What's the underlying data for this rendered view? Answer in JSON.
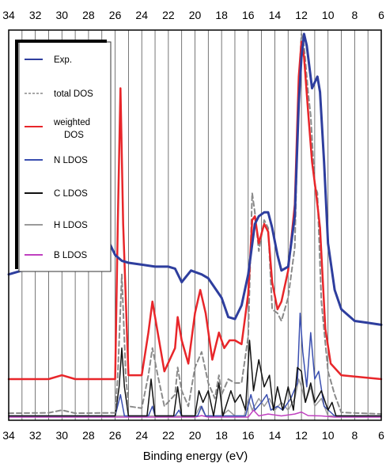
{
  "chart_data": {
    "type": "line",
    "title": "",
    "xlabel": "Binding energy (eV)",
    "ylabel": "",
    "xlim": [
      34,
      6
    ],
    "x_reversed": true,
    "grid": true,
    "legend_position": "top-left",
    "xticks": [
      34,
      32,
      30,
      28,
      26,
      24,
      22,
      20,
      18,
      16,
      14,
      12,
      10,
      8,
      6
    ],
    "legend": [
      {
        "label": "Exp.",
        "style": "solid",
        "color": "#2e3e9e"
      },
      {
        "label": "total DOS",
        "style": "dashed",
        "color": "#8a8a8a"
      },
      {
        "label": "weighted\nDOS",
        "style": "solid",
        "color": "#e8262a"
      },
      {
        "label": "N LDOS",
        "style": "solid",
        "color": "#3a4fb0"
      },
      {
        "label": "C LDOS",
        "style": "solid",
        "color": "#111111"
      },
      {
        "label": "H LDOS",
        "style": "solid",
        "color": "#9a9a9a"
      },
      {
        "label": "B LDOS",
        "style": "solid",
        "color": "#c040c0"
      }
    ],
    "series": [
      {
        "name": "Exp.",
        "color": "#2e3e9e",
        "width": 3,
        "points": [
          [
            34,
            0.37
          ],
          [
            32,
            0.39
          ],
          [
            30.5,
            0.43
          ],
          [
            29.5,
            0.48
          ],
          [
            28.5,
            0.535
          ],
          [
            28,
            0.54
          ],
          [
            27.5,
            0.52
          ],
          [
            26.7,
            0.47
          ],
          [
            26,
            0.42
          ],
          [
            25.5,
            0.405
          ],
          [
            25,
            0.4
          ],
          [
            24,
            0.395
          ],
          [
            23,
            0.39
          ],
          [
            22,
            0.39
          ],
          [
            21.5,
            0.385
          ],
          [
            21,
            0.35
          ],
          [
            20.3,
            0.38
          ],
          [
            19.5,
            0.37
          ],
          [
            19,
            0.36
          ],
          [
            18,
            0.31
          ],
          [
            17.5,
            0.26
          ],
          [
            17,
            0.255
          ],
          [
            16.5,
            0.29
          ],
          [
            16,
            0.37
          ],
          [
            15.5,
            0.5
          ],
          [
            15.2,
            0.52
          ],
          [
            14.8,
            0.53
          ],
          [
            14.5,
            0.53
          ],
          [
            14.2,
            0.49
          ],
          [
            13.8,
            0.42
          ],
          [
            13.5,
            0.38
          ],
          [
            13,
            0.39
          ],
          [
            12.5,
            0.52
          ],
          [
            12.2,
            0.81
          ],
          [
            12,
            0.93
          ],
          [
            11.8,
            0.99
          ],
          [
            11.6,
            0.96
          ],
          [
            11.2,
            0.85
          ],
          [
            10.8,
            0.88
          ],
          [
            10.6,
            0.84
          ],
          [
            10.3,
            0.66
          ],
          [
            10,
            0.45
          ],
          [
            9.5,
            0.33
          ],
          [
            9,
            0.28
          ],
          [
            8,
            0.25
          ],
          [
            7,
            0.245
          ],
          [
            6,
            0.24
          ]
        ]
      },
      {
        "name": "total DOS",
        "color": "#8a8a8a",
        "width": 2,
        "dash": "6 4",
        "points": [
          [
            34,
            0.012
          ],
          [
            31,
            0.013
          ],
          [
            30,
            0.02
          ],
          [
            29,
            0.012
          ],
          [
            26,
            0.013
          ],
          [
            25.8,
            0.11
          ],
          [
            25.5,
            0.37
          ],
          [
            25.2,
            0.11
          ],
          [
            25,
            0.03
          ],
          [
            24,
            0.025
          ],
          [
            23.5,
            0.11
          ],
          [
            23.2,
            0.18
          ],
          [
            22.8,
            0.11
          ],
          [
            22.3,
            0.03
          ],
          [
            21.5,
            0.06
          ],
          [
            21.3,
            0.13
          ],
          [
            21,
            0.07
          ],
          [
            20.5,
            0.03
          ],
          [
            20,
            0.13
          ],
          [
            19.5,
            0.17
          ],
          [
            19,
            0.09
          ],
          [
            18.5,
            0.05
          ],
          [
            18.2,
            0.11
          ],
          [
            18,
            0.06
          ],
          [
            17.5,
            0.1
          ],
          [
            17,
            0.09
          ],
          [
            16.5,
            0.09
          ],
          [
            16,
            0.21
          ],
          [
            15.7,
            0.58
          ],
          [
            15.5,
            0.53
          ],
          [
            15.2,
            0.43
          ],
          [
            14.8,
            0.51
          ],
          [
            14.5,
            0.49
          ],
          [
            14.2,
            0.28
          ],
          [
            13.8,
            0.27
          ],
          [
            13.5,
            0.25
          ],
          [
            13,
            0.31
          ],
          [
            12.5,
            0.44
          ],
          [
            12.2,
            0.86
          ],
          [
            12,
            0.99
          ],
          [
            11.8,
            0.96
          ],
          [
            11.5,
            0.84
          ],
          [
            11.3,
            0.78
          ],
          [
            11,
            0.6
          ],
          [
            10.8,
            0.58
          ],
          [
            10.5,
            0.3
          ],
          [
            10,
            0.12
          ],
          [
            9.5,
            0.06
          ],
          [
            9,
            0.014
          ],
          [
            6,
            0.01
          ]
        ]
      },
      {
        "name": "weighted DOS",
        "color": "#e8262a",
        "width": 2.5,
        "points": [
          [
            34,
            0.1
          ],
          [
            31,
            0.1
          ],
          [
            30,
            0.11
          ],
          [
            29,
            0.1
          ],
          [
            26,
            0.1
          ],
          [
            25.8,
            0.5
          ],
          [
            25.6,
            0.85
          ],
          [
            25.4,
            0.5
          ],
          [
            25,
            0.11
          ],
          [
            24,
            0.11
          ],
          [
            23.5,
            0.22
          ],
          [
            23.2,
            0.3
          ],
          [
            22.8,
            0.22
          ],
          [
            22.3,
            0.12
          ],
          [
            21.5,
            0.18
          ],
          [
            21.3,
            0.26
          ],
          [
            21,
            0.2
          ],
          [
            20.5,
            0.14
          ],
          [
            20,
            0.27
          ],
          [
            19.6,
            0.33
          ],
          [
            19.2,
            0.27
          ],
          [
            18.7,
            0.15
          ],
          [
            18.2,
            0.22
          ],
          [
            17.8,
            0.18
          ],
          [
            17.4,
            0.2
          ],
          [
            17,
            0.2
          ],
          [
            16.5,
            0.19
          ],
          [
            16,
            0.32
          ],
          [
            15.7,
            0.51
          ],
          [
            15.5,
            0.52
          ],
          [
            15.2,
            0.45
          ],
          [
            14.8,
            0.5
          ],
          [
            14.5,
            0.48
          ],
          [
            14.2,
            0.35
          ],
          [
            13.8,
            0.28
          ],
          [
            13.5,
            0.3
          ],
          [
            13,
            0.38
          ],
          [
            12.5,
            0.55
          ],
          [
            12.2,
            0.88
          ],
          [
            12,
            0.97
          ],
          [
            11.8,
            0.93
          ],
          [
            11.5,
            0.79
          ],
          [
            11.2,
            0.66
          ],
          [
            10.9,
            0.58
          ],
          [
            10.6,
            0.49
          ],
          [
            10.2,
            0.23
          ],
          [
            9.8,
            0.14
          ],
          [
            9,
            0.11
          ],
          [
            6,
            0.1
          ]
        ]
      },
      {
        "name": "N LDOS",
        "color": "#3a4fb0",
        "width": 1.5,
        "points": [
          [
            34,
            0.005
          ],
          [
            26,
            0.005
          ],
          [
            25.6,
            0.06
          ],
          [
            25.3,
            0.005
          ],
          [
            23.5,
            0.005
          ],
          [
            23.2,
            0.03
          ],
          [
            23,
            0.005
          ],
          [
            21.5,
            0.005
          ],
          [
            21.2,
            0.02
          ],
          [
            21,
            0.005
          ],
          [
            19.8,
            0.005
          ],
          [
            19.5,
            0.03
          ],
          [
            19.2,
            0.005
          ],
          [
            16.2,
            0.005
          ],
          [
            15.8,
            0.06
          ],
          [
            15.5,
            0.02
          ],
          [
            15,
            0.04
          ],
          [
            14.6,
            0.06
          ],
          [
            14.3,
            0.02
          ],
          [
            13.8,
            0.03
          ],
          [
            13.4,
            0.02
          ],
          [
            12.8,
            0.05
          ],
          [
            12.3,
            0.09
          ],
          [
            12.1,
            0.27
          ],
          [
            11.9,
            0.17
          ],
          [
            11.6,
            0.08
          ],
          [
            11.3,
            0.22
          ],
          [
            11,
            0.1
          ],
          [
            10.7,
            0.12
          ],
          [
            10.3,
            0.03
          ],
          [
            9.5,
            0.005
          ],
          [
            6,
            0.005
          ]
        ]
      },
      {
        "name": "C LDOS",
        "color": "#111111",
        "width": 1.5,
        "points": [
          [
            34,
            0.005
          ],
          [
            26,
            0.005
          ],
          [
            25.7,
            0.08
          ],
          [
            25.5,
            0.18
          ],
          [
            25.3,
            0.08
          ],
          [
            25,
            0.005
          ],
          [
            23.6,
            0.005
          ],
          [
            23.3,
            0.1
          ],
          [
            23,
            0.005
          ],
          [
            21.6,
            0.005
          ],
          [
            21.3,
            0.08
          ],
          [
            21,
            0.005
          ],
          [
            20,
            0.005
          ],
          [
            19.7,
            0.07
          ],
          [
            19.4,
            0.04
          ],
          [
            19,
            0.07
          ],
          [
            18.6,
            0.005
          ],
          [
            18.2,
            0.09
          ],
          [
            17.9,
            0.005
          ],
          [
            17.3,
            0.07
          ],
          [
            17,
            0.04
          ],
          [
            16.6,
            0.06
          ],
          [
            16.2,
            0.02
          ],
          [
            15.9,
            0.2
          ],
          [
            15.6,
            0.07
          ],
          [
            15.2,
            0.15
          ],
          [
            14.8,
            0.08
          ],
          [
            14.4,
            0.11
          ],
          [
            14.1,
            0.02
          ],
          [
            13.8,
            0.08
          ],
          [
            13.4,
            0.02
          ],
          [
            13,
            0.08
          ],
          [
            12.6,
            0.02
          ],
          [
            12.3,
            0.13
          ],
          [
            12,
            0.12
          ],
          [
            11.7,
            0.04
          ],
          [
            11.3,
            0.09
          ],
          [
            11,
            0.04
          ],
          [
            10.5,
            0.07
          ],
          [
            10,
            0.02
          ],
          [
            9.7,
            0.04
          ],
          [
            9.4,
            0.005
          ],
          [
            6,
            0.005
          ]
        ]
      },
      {
        "name": "H LDOS",
        "color": "#9a9a9a",
        "width": 1.5,
        "points": [
          [
            34,
            0.005
          ],
          [
            20,
            0.005
          ],
          [
            19.6,
            0.03
          ],
          [
            19.2,
            0.005
          ],
          [
            18,
            0.005
          ],
          [
            17.5,
            0.02
          ],
          [
            17,
            0.005
          ],
          [
            16.3,
            0.005
          ],
          [
            16,
            0.05
          ],
          [
            15.7,
            0.02
          ],
          [
            15.2,
            0.05
          ],
          [
            14.8,
            0.03
          ],
          [
            14.4,
            0.05
          ],
          [
            14,
            0.02
          ],
          [
            13.5,
            0.04
          ],
          [
            13,
            0.02
          ],
          [
            12.5,
            0.05
          ],
          [
            12.2,
            0.1
          ],
          [
            12,
            0.08
          ],
          [
            11.7,
            0.04
          ],
          [
            11.3,
            0.08
          ],
          [
            11,
            0.03
          ],
          [
            10.5,
            0.05
          ],
          [
            10,
            0.005
          ],
          [
            6,
            0.005
          ]
        ]
      },
      {
        "name": "B LDOS",
        "color": "#c040c0",
        "width": 1.5,
        "points": [
          [
            34,
            0.002
          ],
          [
            20,
            0.002
          ],
          [
            19.5,
            0.006
          ],
          [
            19,
            0.002
          ],
          [
            16,
            0.002
          ],
          [
            15.6,
            0.02
          ],
          [
            15.2,
            0.005
          ],
          [
            14.5,
            0.01
          ],
          [
            13.5,
            0.005
          ],
          [
            12.5,
            0.01
          ],
          [
            12,
            0.015
          ],
          [
            11.5,
            0.006
          ],
          [
            10.5,
            0.005
          ],
          [
            9.5,
            0.002
          ],
          [
            6,
            0.002
          ]
        ]
      }
    ]
  }
}
